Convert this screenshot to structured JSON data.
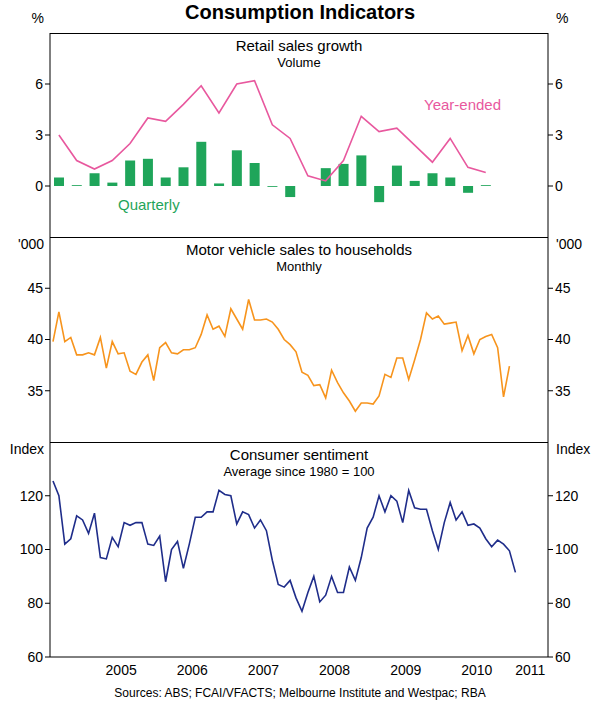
{
  "title": "Consumption Indicators",
  "source": "Sources: ABS; FCAI/VFACTS; Melbourne Institute and Westpac; RBA",
  "chart_data": [
    {
      "type": "bar",
      "title": "Retail sales growth",
      "subtitle": "Volume",
      "y_label": "%",
      "grid": false,
      "tick_labels": "y",
      "x": [
        2004.625,
        2004.875,
        2005.125,
        2005.375,
        2005.625,
        2005.875,
        2006.125,
        2006.375,
        2006.625,
        2006.875,
        2007.125,
        2007.375,
        2007.625,
        2007.875,
        2008.125,
        2008.375,
        2008.625,
        2008.875,
        2009.125,
        2009.375,
        2009.625,
        2009.875,
        2010.125,
        2010.375,
        2010.625
      ],
      "xlim": [
        2004.5,
        2011.5
      ],
      "ylim": [
        -3,
        9
      ],
      "yticks": [
        0,
        3,
        6
      ],
      "series": [
        {
          "name": "Quarterly",
          "type": "bar",
          "color": "#1fa55a",
          "values": [
            0.5,
            0.05,
            0.75,
            0.2,
            1.5,
            1.6,
            0.5,
            1.1,
            2.6,
            0.15,
            2.1,
            1.35,
            -0.05,
            -0.65,
            0,
            1.05,
            1.3,
            1.8,
            -0.95,
            1.2,
            0.3,
            0.75,
            0.5,
            -0.4,
            0.05
          ]
        },
        {
          "name": "Year-ended",
          "type": "line",
          "color": "#e8589e",
          "values": [
            3.0,
            1.5,
            1.0,
            1.5,
            2.5,
            4.0,
            3.8,
            4.8,
            5.9,
            4.3,
            6.0,
            6.2,
            3.6,
            2.8,
            0.6,
            0.3,
            1.5,
            4.1,
            3.2,
            3.4,
            2.4,
            1.4,
            2.8,
            1.1,
            0.8
          ]
        }
      ]
    },
    {
      "type": "line",
      "title": "Motor vehicle sales to households",
      "subtitle": "Monthly",
      "y_label": "'000",
      "grid": false,
      "tick_labels": "y",
      "color": "#f7941d",
      "x": [
        2004.542,
        2004.625,
        2004.708,
        2004.792,
        2004.875,
        2004.958,
        2005.042,
        2005.125,
        2005.208,
        2005.292,
        2005.375,
        2005.458,
        2005.542,
        2005.625,
        2005.708,
        2005.792,
        2005.875,
        2005.958,
        2006.042,
        2006.125,
        2006.208,
        2006.292,
        2006.375,
        2006.458,
        2006.542,
        2006.625,
        2006.708,
        2006.792,
        2006.875,
        2006.958,
        2007.042,
        2007.125,
        2007.208,
        2007.292,
        2007.375,
        2007.458,
        2007.542,
        2007.625,
        2007.708,
        2007.792,
        2007.875,
        2007.958,
        2008.042,
        2008.125,
        2008.208,
        2008.292,
        2008.375,
        2008.458,
        2008.542,
        2008.625,
        2008.708,
        2008.792,
        2008.875,
        2008.958,
        2009.042,
        2009.125,
        2009.208,
        2009.292,
        2009.375,
        2009.458,
        2009.542,
        2009.625,
        2009.708,
        2009.792,
        2009.875,
        2009.958,
        2010.042,
        2010.125,
        2010.208,
        2010.292,
        2010.375,
        2010.458,
        2010.542,
        2010.625,
        2010.708,
        2010.792,
        2010.875,
        2010.958
      ],
      "values": [
        39.8,
        42.7,
        39.8,
        40.2,
        38.5,
        38.5,
        38.7,
        38.5,
        40.2,
        37.2,
        39.8,
        38.6,
        38.7,
        36.9,
        36.6,
        37.8,
        38.5,
        36.0,
        39.2,
        39.7,
        38.7,
        38.6,
        39.0,
        39.0,
        39.2,
        40.5,
        42.4,
        41.0,
        41.3,
        40.3,
        43.0,
        42.0,
        41.0,
        43.9,
        41.9,
        41.9,
        42.0,
        41.7,
        41.0,
        40.0,
        39.5,
        38.8,
        36.8,
        36.5,
        35.5,
        35.6,
        34.3,
        37.0,
        35.8,
        34.8,
        34.0,
        33.0,
        33.8,
        33.8,
        33.7,
        34.5,
        36.6,
        36.3,
        38.2,
        38.2,
        36.1,
        38.0,
        40.0,
        42.6,
        42.0,
        42.3,
        41.5,
        41.6,
        41.7,
        38.9,
        40.4,
        38.6,
        40.0,
        40.3,
        40.5,
        39.2,
        34.4,
        37.4
      ],
      "xlim": [
        2004.5,
        2011.5
      ],
      "ylim": [
        30,
        50
      ],
      "yticks": [
        35,
        40,
        45
      ]
    },
    {
      "type": "line",
      "title": "Consumer sentiment",
      "subtitle": "Average since 1980 = 100",
      "y_label": "Index",
      "grid": false,
      "color": "#1f2d8a",
      "x": [
        2004.542,
        2004.625,
        2004.708,
        2004.792,
        2004.875,
        2004.958,
        2005.042,
        2005.125,
        2005.208,
        2005.292,
        2005.375,
        2005.458,
        2005.542,
        2005.625,
        2005.708,
        2005.792,
        2005.875,
        2005.958,
        2006.042,
        2006.125,
        2006.208,
        2006.292,
        2006.375,
        2006.458,
        2006.542,
        2006.625,
        2006.708,
        2006.792,
        2006.875,
        2006.958,
        2007.042,
        2007.125,
        2007.208,
        2007.292,
        2007.375,
        2007.458,
        2007.542,
        2007.625,
        2007.708,
        2007.792,
        2007.875,
        2007.958,
        2008.042,
        2008.125,
        2008.208,
        2008.292,
        2008.375,
        2008.458,
        2008.542,
        2008.625,
        2008.708,
        2008.792,
        2008.875,
        2008.958,
        2009.042,
        2009.125,
        2009.208,
        2009.292,
        2009.375,
        2009.458,
        2009.542,
        2009.625,
        2009.708,
        2009.792,
        2009.875,
        2009.958,
        2010.042,
        2010.125,
        2010.208,
        2010.292,
        2010.375,
        2010.458,
        2010.542,
        2010.625,
        2010.708,
        2010.792,
        2010.875,
        2010.958,
        2011.042
      ],
      "values": [
        125.5,
        120,
        102,
        104,
        112.5,
        111,
        106,
        113.5,
        97,
        96.5,
        104.5,
        101,
        110,
        109,
        110,
        110,
        102,
        101.5,
        105,
        88,
        100,
        103,
        93,
        102,
        112,
        112,
        114,
        114,
        122,
        120.5,
        120,
        109.5,
        114,
        113,
        108,
        111,
        107,
        96,
        87,
        86,
        88.5,
        82,
        77,
        84,
        90,
        80.5,
        83,
        90,
        84,
        84,
        93.5,
        88.5,
        97,
        108,
        112,
        120,
        114,
        120,
        118,
        110,
        122,
        115.5,
        115,
        115,
        107,
        100,
        110,
        117.5,
        111,
        114,
        109,
        109.5,
        108,
        104,
        101,
        103.5,
        102,
        99.5,
        91.5
      ],
      "xlim": [
        2004.5,
        2011.5
      ],
      "ylim": [
        60,
        140
      ],
      "yticks": [
        60,
        80,
        100,
        120
      ],
      "xticks": [
        {
          "value": 2005.5,
          "label": "2005"
        },
        {
          "value": 2006.5,
          "label": "2006"
        },
        {
          "value": 2007.5,
          "label": "2007"
        },
        {
          "value": 2008.5,
          "label": "2008"
        },
        {
          "value": 2009.5,
          "label": "2009"
        },
        {
          "value": 2010.5,
          "label": "2010"
        },
        {
          "value": 2011.25,
          "label": "2011"
        }
      ]
    }
  ]
}
